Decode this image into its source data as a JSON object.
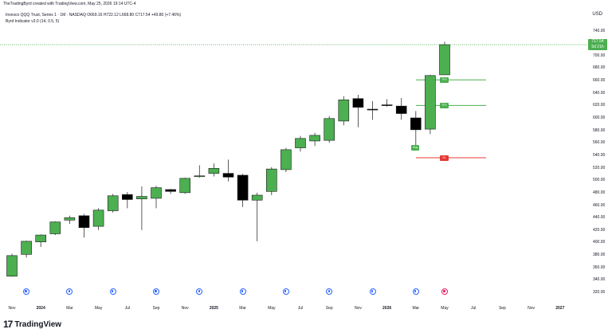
{
  "header": {
    "credit": "TheTradingByrd created with TradingView.com, May 25, 2026 19:14 UTC-4"
  },
  "legend": {
    "symbol_line": "Invesco QQQ Trust, Series 1 · 1M · NASDAQ  O669.16  H722.12  L668.80  C717.54  +49.80 (+7.46%)",
    "indicator_line": "Byrd Indicator v3.0 (14, 0.5, 5)"
  },
  "currency": "USD",
  "last_price": {
    "price": "717.54",
    "countdown": "5d 21h",
    "value": 717.54
  },
  "price_ticks": [
    "740.00",
    "720.00",
    "700.00",
    "680.00",
    "660.00",
    "640.00",
    "620.00",
    "600.00",
    "580.00",
    "560.00",
    "540.00",
    "520.00",
    "500.00",
    "480.00",
    "460.00",
    "440.00",
    "420.00",
    "400.00",
    "380.00",
    "360.00",
    "340.00",
    "320.00"
  ],
  "time_labels": [
    {
      "text": "Nov",
      "year": false
    },
    {
      "text": "2024",
      "year": true
    },
    {
      "text": "Mar",
      "year": false
    },
    {
      "text": "May",
      "year": false
    },
    {
      "text": "Jul",
      "year": false
    },
    {
      "text": "Sep",
      "year": false
    },
    {
      "text": "Nov",
      "year": false
    },
    {
      "text": "2025",
      "year": true
    },
    {
      "text": "Mar",
      "year": false
    },
    {
      "text": "May",
      "year": false
    },
    {
      "text": "Jul",
      "year": false
    },
    {
      "text": "Sep",
      "year": false
    },
    {
      "text": "Nov",
      "year": false
    },
    {
      "text": "2026",
      "year": true
    },
    {
      "text": "Mar",
      "year": false
    },
    {
      "text": "May",
      "year": false
    },
    {
      "text": "Jul",
      "year": false
    },
    {
      "text": "Sep",
      "year": false
    },
    {
      "text": "Nov",
      "year": false
    },
    {
      "text": "2027",
      "year": true
    }
  ],
  "chart_data": {
    "type": "candlestick",
    "y_range": [
      315,
      745
    ],
    "candles": [
      {
        "o": 346,
        "h": 382,
        "l": 345,
        "c": 379
      },
      {
        "o": 381,
        "h": 403,
        "l": 376,
        "c": 402
      },
      {
        "o": 401,
        "h": 413,
        "l": 393,
        "c": 412
      },
      {
        "o": 414,
        "h": 434,
        "l": 412,
        "c": 433
      },
      {
        "o": 436,
        "h": 443,
        "l": 430,
        "c": 440
      },
      {
        "o": 443,
        "h": 446,
        "l": 408,
        "c": 424
      },
      {
        "o": 426,
        "h": 455,
        "l": 420,
        "c": 452
      },
      {
        "o": 451,
        "h": 478,
        "l": 448,
        "c": 475
      },
      {
        "o": 477,
        "h": 481,
        "l": 455,
        "c": 469
      },
      {
        "o": 470,
        "h": 490,
        "l": 420,
        "c": 474
      },
      {
        "o": 471,
        "h": 491,
        "l": 455,
        "c": 488
      },
      {
        "o": 485,
        "h": 486,
        "l": 478,
        "c": 482
      },
      {
        "o": 480,
        "h": 504,
        "l": 478,
        "c": 503
      },
      {
        "o": 506,
        "h": 524,
        "l": 504,
        "c": 507
      },
      {
        "o": 511,
        "h": 527,
        "l": 506,
        "c": 519
      },
      {
        "o": 511,
        "h": 533,
        "l": 498,
        "c": 505
      },
      {
        "o": 508,
        "h": 510,
        "l": 457,
        "c": 468
      },
      {
        "o": 468,
        "h": 480,
        "l": 402,
        "c": 476
      },
      {
        "o": 482,
        "h": 521,
        "l": 476,
        "c": 518
      },
      {
        "o": 517,
        "h": 552,
        "l": 513,
        "c": 549
      },
      {
        "o": 552,
        "h": 571,
        "l": 546,
        "c": 567
      },
      {
        "o": 563,
        "h": 576,
        "l": 555,
        "c": 572
      },
      {
        "o": 564,
        "h": 603,
        "l": 560,
        "c": 599
      },
      {
        "o": 595,
        "h": 635,
        "l": 588,
        "c": 629
      },
      {
        "o": 631,
        "h": 637,
        "l": 585,
        "c": 617
      },
      {
        "o": 614,
        "h": 627,
        "l": 597,
        "c": 613
      },
      {
        "o": 621,
        "h": 630,
        "l": 618,
        "c": 620
      },
      {
        "o": 619,
        "h": 632,
        "l": 597,
        "c": 607
      },
      {
        "o": 600,
        "h": 611,
        "l": 556,
        "c": 581
      },
      {
        "o": 582,
        "h": 669,
        "l": 574,
        "c": 668
      },
      {
        "o": 669.16,
        "h": 722.12,
        "l": 668.8,
        "c": 717.54
      }
    ],
    "levels": [
      {
        "label": "TP2",
        "value": 661,
        "color": "#4caf50"
      },
      {
        "label": "TP1",
        "value": 620,
        "color": "#4caf50"
      },
      {
        "label": "SL",
        "value": 536,
        "color": "#e53935"
      }
    ],
    "signal": {
      "label": "Buy",
      "value": 552,
      "color": "#4caf50"
    }
  },
  "colors": {
    "up": "#4caf50",
    "down": "#000000",
    "grid": "#f0f3fa",
    "event": "#2962ff",
    "sl": "#e53935"
  },
  "brand": {
    "name": "TradingView",
    "mark": "17"
  }
}
